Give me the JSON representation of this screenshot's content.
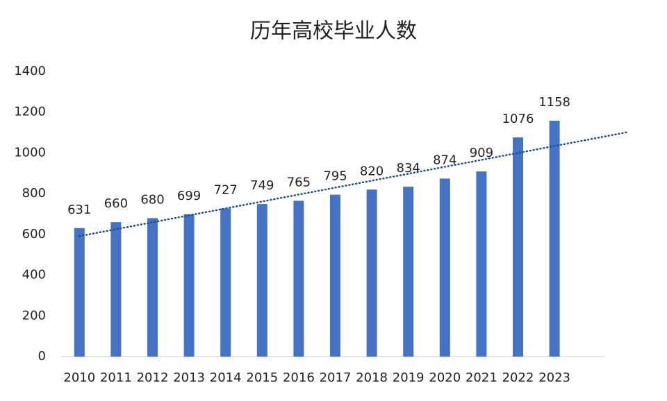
{
  "chart_data": {
    "type": "bar",
    "title": "历年高校毕业人数",
    "categories": [
      "2010",
      "2011",
      "2012",
      "2013",
      "2014",
      "2015",
      "2016",
      "2017",
      "2018",
      "2019",
      "2020",
      "2021",
      "2022",
      "2023"
    ],
    "values": [
      631,
      660,
      680,
      699,
      727,
      749,
      765,
      795,
      820,
      834,
      874,
      909,
      1076,
      1158
    ],
    "color": "#4472c4",
    "ylim": [
      0,
      1400
    ],
    "yticks": [
      0,
      200,
      400,
      600,
      800,
      1000,
      1200,
      1400
    ],
    "grid": false,
    "data_labels": true,
    "trendline": "linear",
    "trendline_color": "#1f4e8c"
  }
}
